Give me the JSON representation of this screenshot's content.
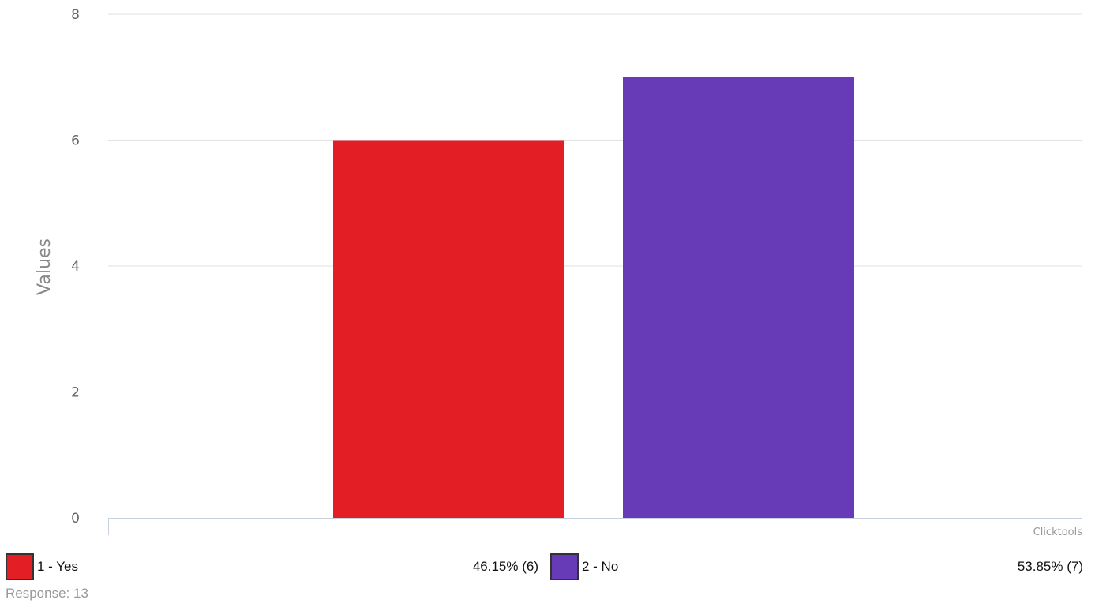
{
  "chart_data": {
    "type": "bar",
    "categories": [
      "1 - Yes",
      "2 - No"
    ],
    "values": [
      6,
      7
    ],
    "colors": [
      "#e31e24",
      "#673ab7"
    ],
    "ylabel": "Values",
    "xlabel": "",
    "ylim": [
      0,
      8
    ],
    "yticks": [
      0,
      2,
      4,
      6,
      8
    ],
    "grid": true,
    "credit": "Clicktools"
  },
  "legend": [
    {
      "label": "1 - Yes",
      "value": "46.15% (6)",
      "color": "#e31e24"
    },
    {
      "label": "2 - No",
      "value": "53.85% (7)",
      "color": "#673ab7"
    }
  ],
  "footer": {
    "response": "Response: 13"
  }
}
